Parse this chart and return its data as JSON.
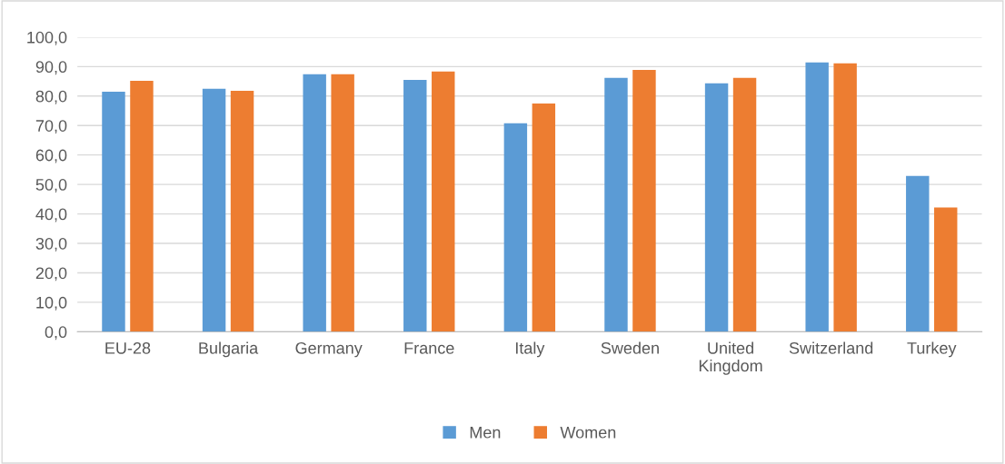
{
  "chart_data": {
    "type": "bar",
    "categories": [
      "EU-28",
      "Bulgaria",
      "Germany",
      "France",
      "Italy",
      "Sweden",
      "United Kingdom",
      "Switzerland",
      "Turkey"
    ],
    "series": [
      {
        "name": "Men",
        "color": "#5b9bd5",
        "values": [
          81.5,
          82.5,
          87.4,
          85.5,
          70.8,
          86.2,
          84.3,
          91.4,
          52.9
        ]
      },
      {
        "name": "Women",
        "color": "#ed7d31",
        "values": [
          85.2,
          81.8,
          87.4,
          88.3,
          77.5,
          88.9,
          86.2,
          91.1,
          42.2
        ]
      }
    ],
    "ylim": [
      0,
      100
    ],
    "yticks": [
      {
        "value": 0,
        "label": "0,0"
      },
      {
        "value": 10,
        "label": "10,0"
      },
      {
        "value": 20,
        "label": "20,0"
      },
      {
        "value": 30,
        "label": "30,0"
      },
      {
        "value": 40,
        "label": "40,0"
      },
      {
        "value": 50,
        "label": "50,0"
      },
      {
        "value": 60,
        "label": "60,0"
      },
      {
        "value": 70,
        "label": "70,0"
      },
      {
        "value": 80,
        "label": "80,0"
      },
      {
        "value": 90,
        "label": "90,0"
      },
      {
        "value": 100,
        "label": "100,0"
      }
    ],
    "grid": "y",
    "legend": "bottom"
  }
}
